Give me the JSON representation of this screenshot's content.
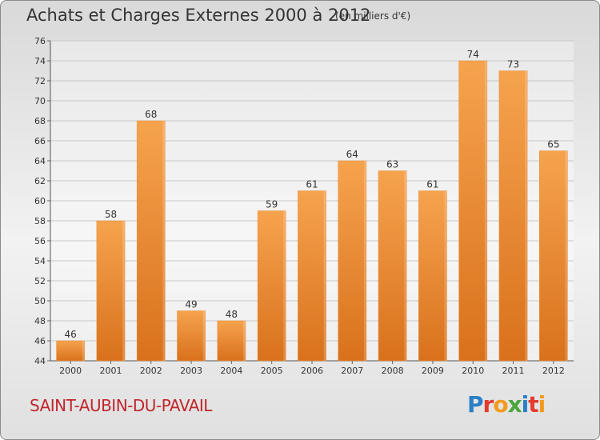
{
  "header": {
    "title": "Achats et Charges Externes 2000 à 2012",
    "unit_note": "(en milliers d'€)"
  },
  "footer": {
    "commune": "SAINT-AUBIN-DU-PAVAIL",
    "logo": "Proxiti",
    "logo_colors": [
      "#2a7fc6",
      "#e23b2e",
      "#f39a1e",
      "#4aa63d",
      "#2a7fc6",
      "#e23b2e",
      "#f39a1e"
    ]
  },
  "colors": {
    "bar_top": "#f6a34e",
    "bar_bottom": "#d9711c",
    "commune_text": "#c0262d"
  },
  "chart_data": {
    "type": "bar",
    "categories": [
      "2000",
      "2001",
      "2002",
      "2003",
      "2004",
      "2005",
      "2006",
      "2007",
      "2008",
      "2009",
      "2010",
      "2011",
      "2012"
    ],
    "values": [
      46,
      58,
      68,
      49,
      48,
      59,
      61,
      64,
      63,
      61,
      74,
      73,
      65
    ],
    "title": "Achats et Charges Externes 2000 à 2012",
    "subtitle": "(en milliers d'€)",
    "xlabel": "",
    "ylabel": "",
    "ylim": [
      44,
      76
    ],
    "yticks": [
      44,
      46,
      48,
      50,
      52,
      54,
      56,
      58,
      60,
      62,
      64,
      66,
      68,
      70,
      72,
      74,
      76
    ],
    "grid": true,
    "data_labels": true
  }
}
